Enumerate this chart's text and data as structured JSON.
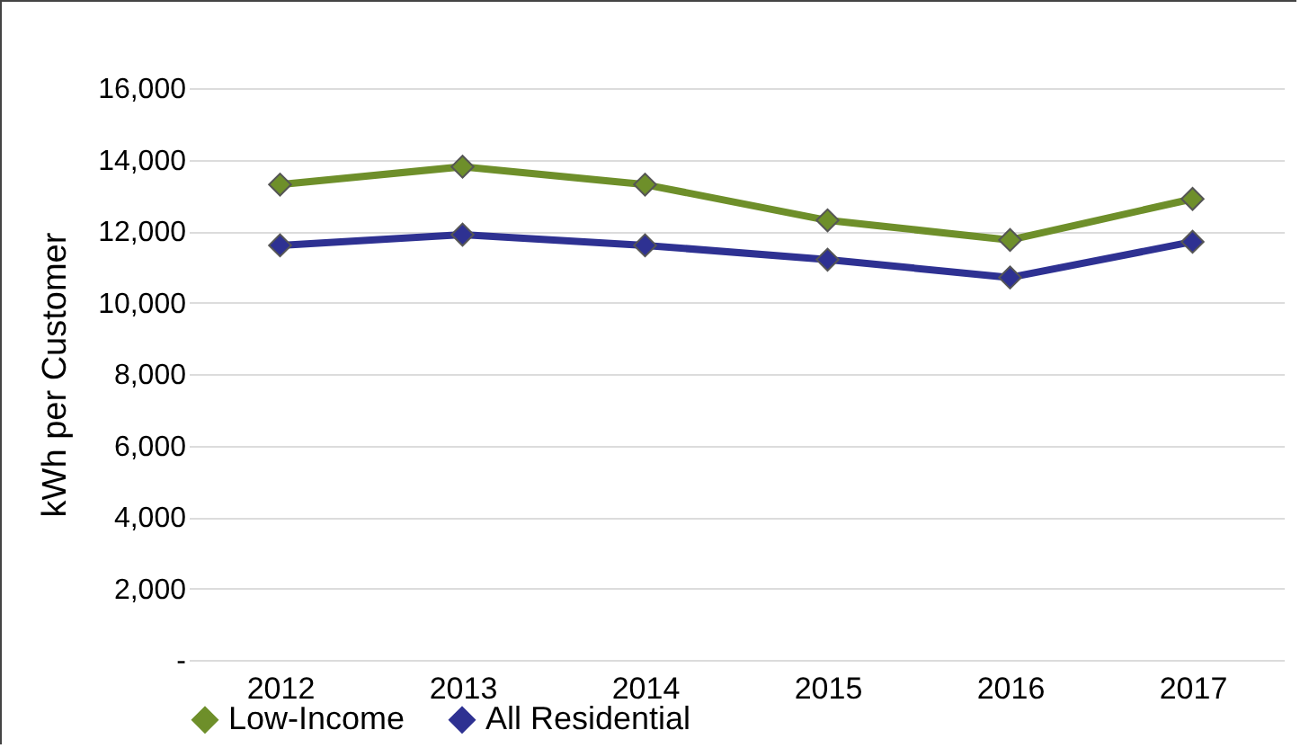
{
  "chart_data": {
    "type": "line",
    "ylabel": "kWh per Customer",
    "categories": [
      "2012",
      "2013",
      "2014",
      "2015",
      "2016",
      "2017"
    ],
    "series": [
      {
        "name": "Low-Income",
        "color": "#6e8f2a",
        "values": [
          13300,
          13800,
          13300,
          12300,
          11750,
          12900
        ]
      },
      {
        "name": "All Residential",
        "color": "#2e3192",
        "values": [
          11600,
          11900,
          11600,
          11200,
          10700,
          11700
        ]
      }
    ],
    "ylim": [
      0,
      16000
    ],
    "yticks": [
      {
        "value": 0,
        "label": "-"
      },
      {
        "value": 2000,
        "label": "2,000"
      },
      {
        "value": 4000,
        "label": "4,000"
      },
      {
        "value": 6000,
        "label": "6,000"
      },
      {
        "value": 8000,
        "label": "8,000"
      },
      {
        "value": 10000,
        "label": "10,000"
      },
      {
        "value": 12000,
        "label": "12,000"
      },
      {
        "value": 14000,
        "label": "14,000"
      },
      {
        "value": 16000,
        "label": "16,000"
      }
    ],
    "grid": "y",
    "legend": "bottom",
    "marker": "diamond",
    "line_style": "solid"
  }
}
